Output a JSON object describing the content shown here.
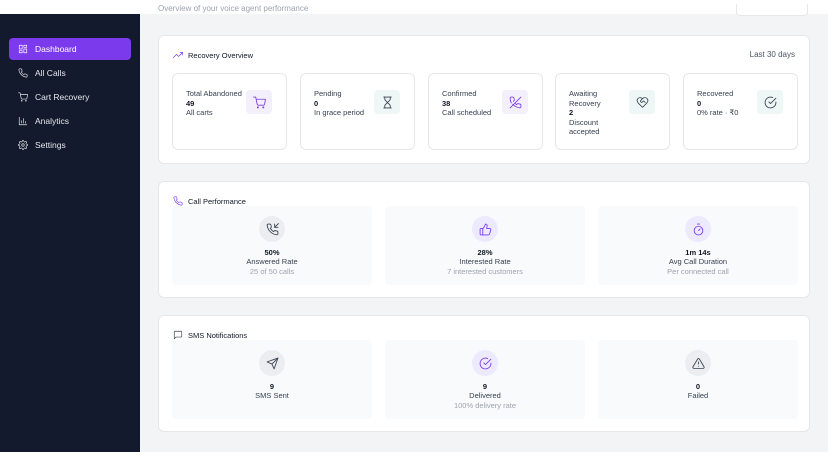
{
  "header": {
    "subtitle": "Overview of your voice agent performance"
  },
  "sidebar": {
    "items": [
      {
        "label": "Dashboard",
        "icon": "dashboard-icon",
        "active": true
      },
      {
        "label": "All Calls",
        "icon": "phone-icon"
      },
      {
        "label": "Cart Recovery",
        "icon": "cart-icon"
      },
      {
        "label": "Analytics",
        "icon": "bar-chart-icon"
      },
      {
        "label": "Settings",
        "icon": "gear-icon"
      }
    ]
  },
  "recovery": {
    "title": "Recovery Overview",
    "period": "Last 30 days",
    "stats": [
      {
        "label": "Total Abandoned",
        "value": "49",
        "sub": "All carts",
        "icon": "cart-icon"
      },
      {
        "label": "Pending",
        "value": "0",
        "sub": "In grace period",
        "icon": "hourglass-icon"
      },
      {
        "label": "Confirmed",
        "value": "38",
        "sub": "Call scheduled",
        "icon": "phone-off-icon"
      },
      {
        "label": "Awaiting Recovery",
        "value": "2",
        "sub": "Discount accepted",
        "icon": "heart-handshake-icon"
      },
      {
        "label": "Recovered",
        "value": "0",
        "sub": "0% rate · ₹0",
        "icon": "check-circle-icon"
      }
    ]
  },
  "calls": {
    "title": "Call Performance",
    "tiles": [
      {
        "value": "50%",
        "label": "Answered Rate",
        "sub": "25 of 50 calls",
        "icon": "phone-incoming-icon"
      },
      {
        "value": "28%",
        "label": "Interested Rate",
        "sub": "7 interested customers",
        "icon": "thumbs-up-icon"
      },
      {
        "value": "1m 14s",
        "label": "Avg Call Duration",
        "sub": "Per connected call",
        "icon": "stopwatch-icon"
      }
    ]
  },
  "sms": {
    "title": "SMS Notifications",
    "tiles": [
      {
        "value": "9",
        "label": "SMS Sent",
        "sub": "",
        "icon": "send-icon"
      },
      {
        "value": "9",
        "label": "Delivered",
        "sub": "100% delivery rate",
        "icon": "check-circle-icon"
      },
      {
        "value": "0",
        "label": "Failed",
        "sub": "",
        "icon": "alert-triangle-icon"
      }
    ]
  },
  "colors": {
    "accent": "#7c3aed",
    "sidebar_bg": "#141a2e",
    "page_bg": "#f3f4f6"
  }
}
